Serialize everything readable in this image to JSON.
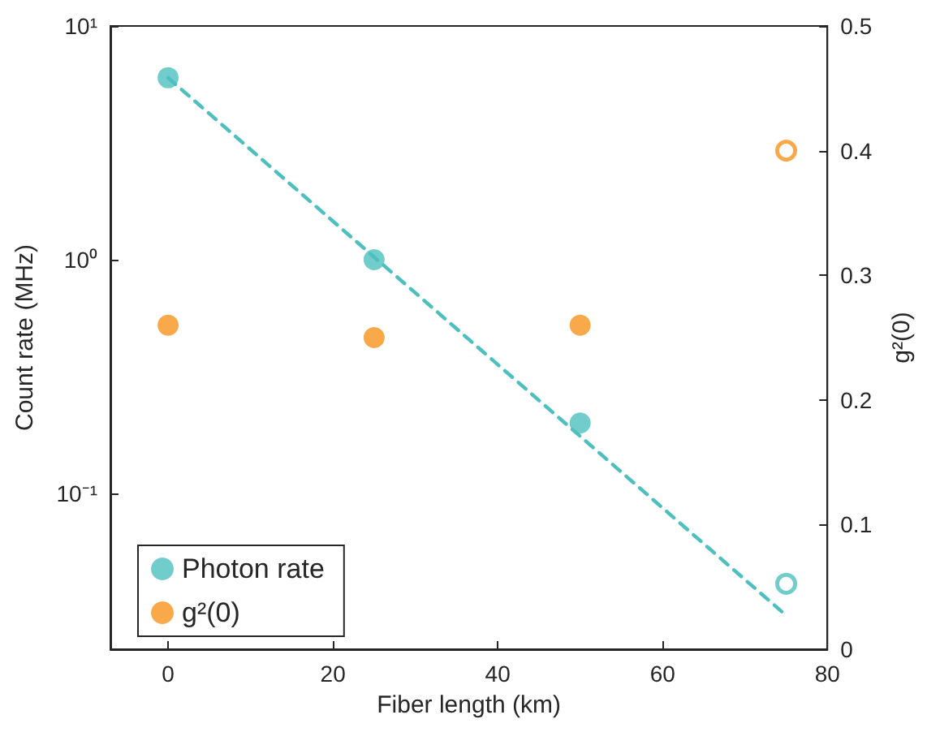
{
  "chart_data": {
    "type": "scatter",
    "xlabel": "Fiber length (km)",
    "ylabel": "Count rate (MHz)",
    "y2label": "g²(0)",
    "x": [
      0,
      25,
      50,
      75
    ],
    "series": [
      {
        "name": "Photon rate",
        "color": "#4dbfbf",
        "values": [
          6,
          1,
          0.2,
          null
        ]
      },
      {
        "name": "g²(0)",
        "color": "#f7941d",
        "values": [
          0.26,
          0.25,
          0.26,
          null
        ],
        "axis": "y2"
      },
      {
        "color": "#4dbfbf",
        "values": [
          null,
          null,
          null,
          0.041
        ]
      },
      {
        "color": "#f7941d",
        "values": [
          null,
          null,
          null,
          0.4
        ],
        "axis": "y2"
      },
      {
        "type": "line",
        "color": "#4dbfbf",
        "x": [
          0,
          75
        ],
        "values": [
          6,
          0.03
        ],
        "line_style": "dashed",
        "marker": "none"
      }
    ],
    "xlim": [
      -7,
      80
    ],
    "xticks": [
      0,
      20,
      40,
      60,
      80
    ],
    "ylim": [
      0.0215,
      10
    ],
    "yticks": [
      {
        "value": 0.1,
        "label": "10⁻¹"
      },
      {
        "value": 1,
        "label": "10⁰"
      },
      {
        "value": 10,
        "label": "10¹"
      }
    ],
    "log": "y",
    "y2lim": [
      0,
      0.5
    ],
    "y2ticks": [
      0,
      0.1,
      0.2,
      0.3,
      0.4,
      0.5
    ],
    "marker": "circle",
    "grid": false,
    "legend": "bottom left"
  }
}
